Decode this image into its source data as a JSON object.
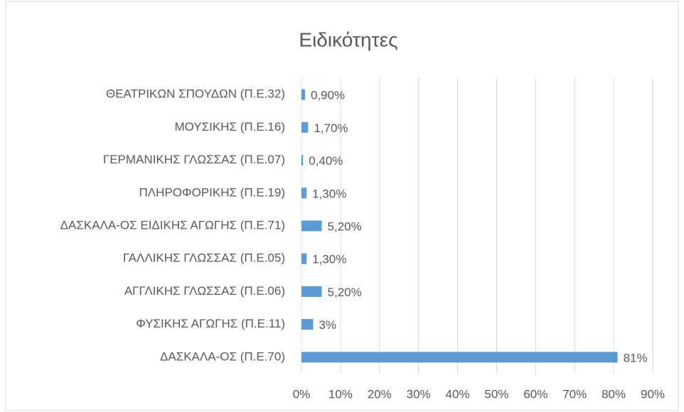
{
  "chart_data": {
    "type": "bar",
    "orientation": "horizontal",
    "title": "Ειδικότητες",
    "categories": [
      "ΘΕΑΤΡΙΚΩΝ ΣΠΟΥΔΩΝ (Π.Ε.32)",
      "ΜΟΥΣΙΚΗΣ (Π.Ε.16)",
      "ΓΕΡΜΑΝΙΚΗΣ ΓΛΩΣΣΑΣ (Π.Ε.07)",
      "ΠΛΗΡΟΦΟΡΙΚΗΣ (Π.Ε.19)",
      "ΔΑΣΚΑΛΑ-ΟΣ ΕΙΔΙΚΗΣ ΑΓΩΓΗΣ (Π.Ε.71)",
      "ΓΑΛΛΙΚΗΣ ΓΛΩΣΣΑΣ (Π.Ε.05)",
      "ΑΓΓΛΙΚΗΣ ΓΛΩΣΣΑΣ (Π.Ε.06)",
      "ΦΥΣΙΚΗΣ ΑΓΩΓΗΣ (Π.Ε.11)",
      "ΔΑΣΚΑΛΑ-ΟΣ (Π.Ε.70)"
    ],
    "values": [
      0.9,
      1.7,
      0.4,
      1.3,
      5.2,
      1.3,
      5.2,
      3,
      81
    ],
    "value_labels": [
      "0,90%",
      "1,70%",
      "0,40%",
      "1,30%",
      "5,20%",
      "1,30%",
      "5,20%",
      "3%",
      "81%"
    ],
    "color": "#5b9bd5",
    "xlim": [
      0,
      90
    ],
    "xticks": [
      {
        "value": 0,
        "label": "0%"
      },
      {
        "value": 10,
        "label": "10%"
      },
      {
        "value": 20,
        "label": "20%"
      },
      {
        "value": 30,
        "label": "30%"
      },
      {
        "value": 40,
        "label": "40%"
      },
      {
        "value": 50,
        "label": "50%"
      },
      {
        "value": 60,
        "label": "60%"
      },
      {
        "value": 70,
        "label": "70%"
      },
      {
        "value": 80,
        "label": "80%"
      },
      {
        "value": 90,
        "label": "90%"
      }
    ],
    "grid": true
  }
}
